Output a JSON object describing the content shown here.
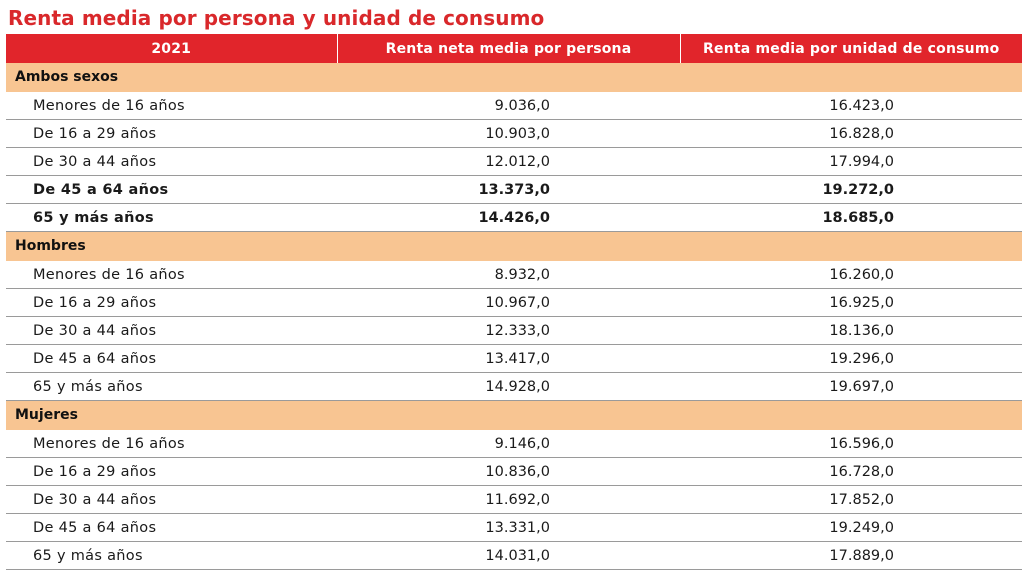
{
  "title": "Renta media por persona y unidad de consumo",
  "header": {
    "col1": "2021",
    "col2": "Renta neta media por persona",
    "col3": "Renta media por unidad de consumo"
  },
  "colors": {
    "title": "#d9282b",
    "header_bg": "#e1252b",
    "section_bg": "#f8c592"
  },
  "sections": [
    {
      "label": "Ambos sexos",
      "rows": [
        {
          "label": "Menores de 16 años",
          "per_person": "9.036,0",
          "per_unit": "16.423,0",
          "bold": false
        },
        {
          "label": "De 16 a 29 años",
          "per_person": "10.903,0",
          "per_unit": "16.828,0",
          "bold": false
        },
        {
          "label": "De 30 a 44 años",
          "per_person": "12.012,0",
          "per_unit": "17.994,0",
          "bold": false
        },
        {
          "label": "De 45 a 64 años",
          "per_person": "13.373,0",
          "per_unit": "19.272,0",
          "bold": true
        },
        {
          "label": "65 y más años",
          "per_person": "14.426,0",
          "per_unit": "18.685,0",
          "bold": true
        }
      ]
    },
    {
      "label": "Hombres",
      "rows": [
        {
          "label": "Menores de 16 años",
          "per_person": "8.932,0",
          "per_unit": "16.260,0",
          "bold": false
        },
        {
          "label": "De 16 a 29 años",
          "per_person": "10.967,0",
          "per_unit": "16.925,0",
          "bold": false
        },
        {
          "label": "De 30 a 44 años",
          "per_person": "12.333,0",
          "per_unit": "18.136,0",
          "bold": false
        },
        {
          "label": "De 45 a 64 años",
          "per_person": "13.417,0",
          "per_unit": "19.296,0",
          "bold": false
        },
        {
          "label": "65 y más años",
          "per_person": "14.928,0",
          "per_unit": "19.697,0",
          "bold": false
        }
      ]
    },
    {
      "label": "Mujeres",
      "rows": [
        {
          "label": "Menores de 16 años",
          "per_person": "9.146,0",
          "per_unit": "16.596,0",
          "bold": false
        },
        {
          "label": "De 16 a 29 años",
          "per_person": "10.836,0",
          "per_unit": "16.728,0",
          "bold": false
        },
        {
          "label": "De 30 a 44 años",
          "per_person": "11.692,0",
          "per_unit": "17.852,0",
          "bold": false
        },
        {
          "label": "De 45 a 64 años",
          "per_person": "13.331,0",
          "per_unit": "19.249,0",
          "bold": false
        },
        {
          "label": "65 y más años",
          "per_person": "14.031,0",
          "per_unit": "17.889,0",
          "bold": false
        }
      ]
    }
  ]
}
